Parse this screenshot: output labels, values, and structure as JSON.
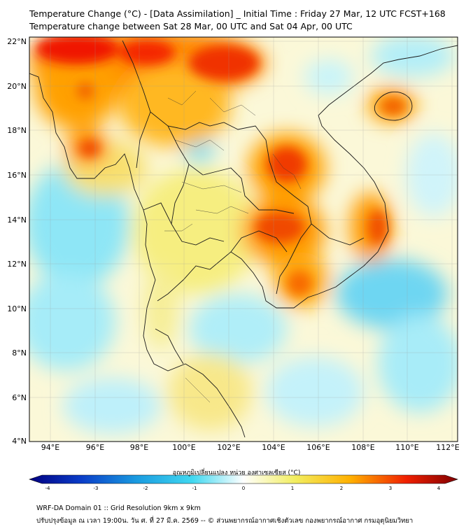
{
  "title": {
    "line1": "Temperature Change (°C) - [Data Assimilation] _ Initial Time : Friday 27 Mar, 12 UTC FCST+168",
    "line2": "Temperature change between Sat 28 Mar, 00 UTC and Sat 04 Apr, 00 UTC"
  },
  "lat_labels": [
    "22°N",
    "20°N",
    "18°N",
    "16°N",
    "14°N",
    "12°N",
    "10°N",
    "8°N",
    "6°N",
    "4°N"
  ],
  "lon_labels": [
    "94°E",
    "96°E",
    "98°E",
    "100°E",
    "102°E",
    "104°E",
    "106°E",
    "108°E",
    "110°E",
    "112°E"
  ],
  "colorbar": {
    "label": "อุณหภูมิเปลี่ยนแปลง หน่วย องศาเซลเซียส (°C)",
    "ticks": [
      "-4",
      "-3",
      "-2",
      "-1",
      "0",
      "1",
      "2",
      "3",
      "4"
    ],
    "range": [
      -4,
      4
    ]
  },
  "footer": {
    "line1": "WRF-DA Domain 01 :: Grid Resolution 9km x 9km",
    "line2": "ปรับปรุงข้อมูล ณ เวลา 19:00น. วัน ศ. ที่ 27 มี.ค. 2569 -- © ส่วนพยากรณ์อากาศเชิงตัวเลข กองพยากรณ์อากาศ กรมอุตุนิยมวิทยา"
  },
  "colors": {
    "neg4": "#000080",
    "neg2": "#1a9be0",
    "neg1": "#40d8f0",
    "zero": "#ffffff",
    "pos1": "#f2ee60",
    "pos2": "#ffb000",
    "pos3": "#f02000",
    "pos4": "#800000"
  }
}
